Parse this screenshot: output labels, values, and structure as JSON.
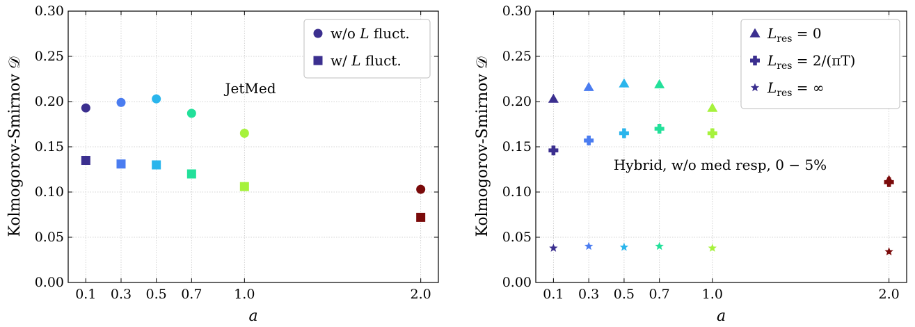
{
  "chart_data": [
    {
      "type": "scatter",
      "xlabel": "a",
      "ylabel": "Kolmogorov-Smirnov 𝒟",
      "xlim": [
        0.0,
        2.1
      ],
      "ylim": [
        0.0,
        0.3
      ],
      "x_ticks": [
        "0.1",
        "0.3",
        "0.5",
        "0.7",
        "1.0",
        "2.0"
      ],
      "y_ticks": [
        "0.00",
        "0.05",
        "0.10",
        "0.15",
        "0.20",
        "0.25",
        "0.30"
      ],
      "grid": true,
      "annotation": "JetMed",
      "legend_position": "top-right",
      "series": [
        {
          "name": "w/o L fluct.",
          "legend_label": {
            "pre": "w/o ",
            "var": "L",
            "post": " fluct."
          },
          "marker": "circle",
          "legend_color": "#3b2f8f",
          "points": [
            {
              "x": 0.1,
              "y": 0.193,
              "color": "#3b2f8f"
            },
            {
              "x": 0.3,
              "y": 0.199,
              "color": "#4a7cf0"
            },
            {
              "x": 0.5,
              "y": 0.203,
              "color": "#2ab5ec"
            },
            {
              "x": 0.7,
              "y": 0.187,
              "color": "#22e09a"
            },
            {
              "x": 1.0,
              "y": 0.165,
              "color": "#a6f23c"
            },
            {
              "x": 2.0,
              "y": 0.103,
              "color": "#7a0a0a"
            }
          ]
        },
        {
          "name": "w/ L fluct.",
          "legend_label": {
            "pre": "w/ ",
            "var": "L",
            "post": " fluct."
          },
          "marker": "square",
          "legend_color": "#3b2f8f",
          "points": [
            {
              "x": 0.1,
              "y": 0.135,
              "color": "#3b2f8f"
            },
            {
              "x": 0.3,
              "y": 0.131,
              "color": "#4a7cf0"
            },
            {
              "x": 0.5,
              "y": 0.13,
              "color": "#2ab5ec"
            },
            {
              "x": 0.7,
              "y": 0.12,
              "color": "#22e09a"
            },
            {
              "x": 1.0,
              "y": 0.106,
              "color": "#a6f23c"
            },
            {
              "x": 2.0,
              "y": 0.072,
              "color": "#7a0a0a"
            }
          ]
        }
      ]
    },
    {
      "type": "scatter",
      "xlabel": "a",
      "ylabel": "Kolmogorov-Smirnov 𝒟",
      "xlim": [
        0.0,
        2.1
      ],
      "ylim": [
        0.0,
        0.3
      ],
      "x_ticks": [
        "0.1",
        "0.3",
        "0.5",
        "0.7",
        "1.0",
        "2.0"
      ],
      "y_ticks": [
        "0.00",
        "0.05",
        "0.10",
        "0.15",
        "0.20",
        "0.25",
        "0.30"
      ],
      "grid": true,
      "annotation": "Hybrid, w/o med resp, 0 − 5%",
      "legend_position": "top-right",
      "series": [
        {
          "name": "L_res = 0",
          "legend_label": {
            "var": "L",
            "sub": "res",
            "post": " = 0"
          },
          "marker": "triangle",
          "legend_color": "#3b2f8f",
          "points": [
            {
              "x": 0.1,
              "y": 0.203,
              "color": "#3b2f8f"
            },
            {
              "x": 0.3,
              "y": 0.216,
              "color": "#4a7cf0"
            },
            {
              "x": 0.5,
              "y": 0.22,
              "color": "#2ab5ec"
            },
            {
              "x": 0.7,
              "y": 0.219,
              "color": "#22e09a"
            },
            {
              "x": 1.0,
              "y": 0.193,
              "color": "#a6f23c"
            },
            {
              "x": 2.0,
              "y": 0.113,
              "color": "#7a0a0a"
            }
          ]
        },
        {
          "name": "L_res = 2/(πT)",
          "legend_label": {
            "var": "L",
            "sub": "res",
            "post": " = 2/(πT)"
          },
          "marker": "plus",
          "legend_color": "#3b2f8f",
          "points": [
            {
              "x": 0.1,
              "y": 0.146,
              "color": "#3b2f8f"
            },
            {
              "x": 0.3,
              "y": 0.157,
              "color": "#4a7cf0"
            },
            {
              "x": 0.5,
              "y": 0.165,
              "color": "#2ab5ec"
            },
            {
              "x": 0.7,
              "y": 0.17,
              "color": "#22e09a"
            },
            {
              "x": 1.0,
              "y": 0.165,
              "color": "#a6f23c"
            },
            {
              "x": 2.0,
              "y": 0.111,
              "color": "#7a0a0a"
            }
          ]
        },
        {
          "name": "L_res = ∞",
          "legend_label": {
            "var": "L",
            "sub": "res",
            "post": " = ∞"
          },
          "marker": "star",
          "legend_color": "#3b2f8f",
          "points": [
            {
              "x": 0.1,
              "y": 0.038,
              "color": "#3b2f8f"
            },
            {
              "x": 0.3,
              "y": 0.04,
              "color": "#4a7cf0"
            },
            {
              "x": 0.5,
              "y": 0.039,
              "color": "#2ab5ec"
            },
            {
              "x": 0.7,
              "y": 0.04,
              "color": "#22e09a"
            },
            {
              "x": 1.0,
              "y": 0.038,
              "color": "#a6f23c"
            },
            {
              "x": 2.0,
              "y": 0.034,
              "color": "#7a0a0a"
            }
          ]
        }
      ]
    }
  ]
}
